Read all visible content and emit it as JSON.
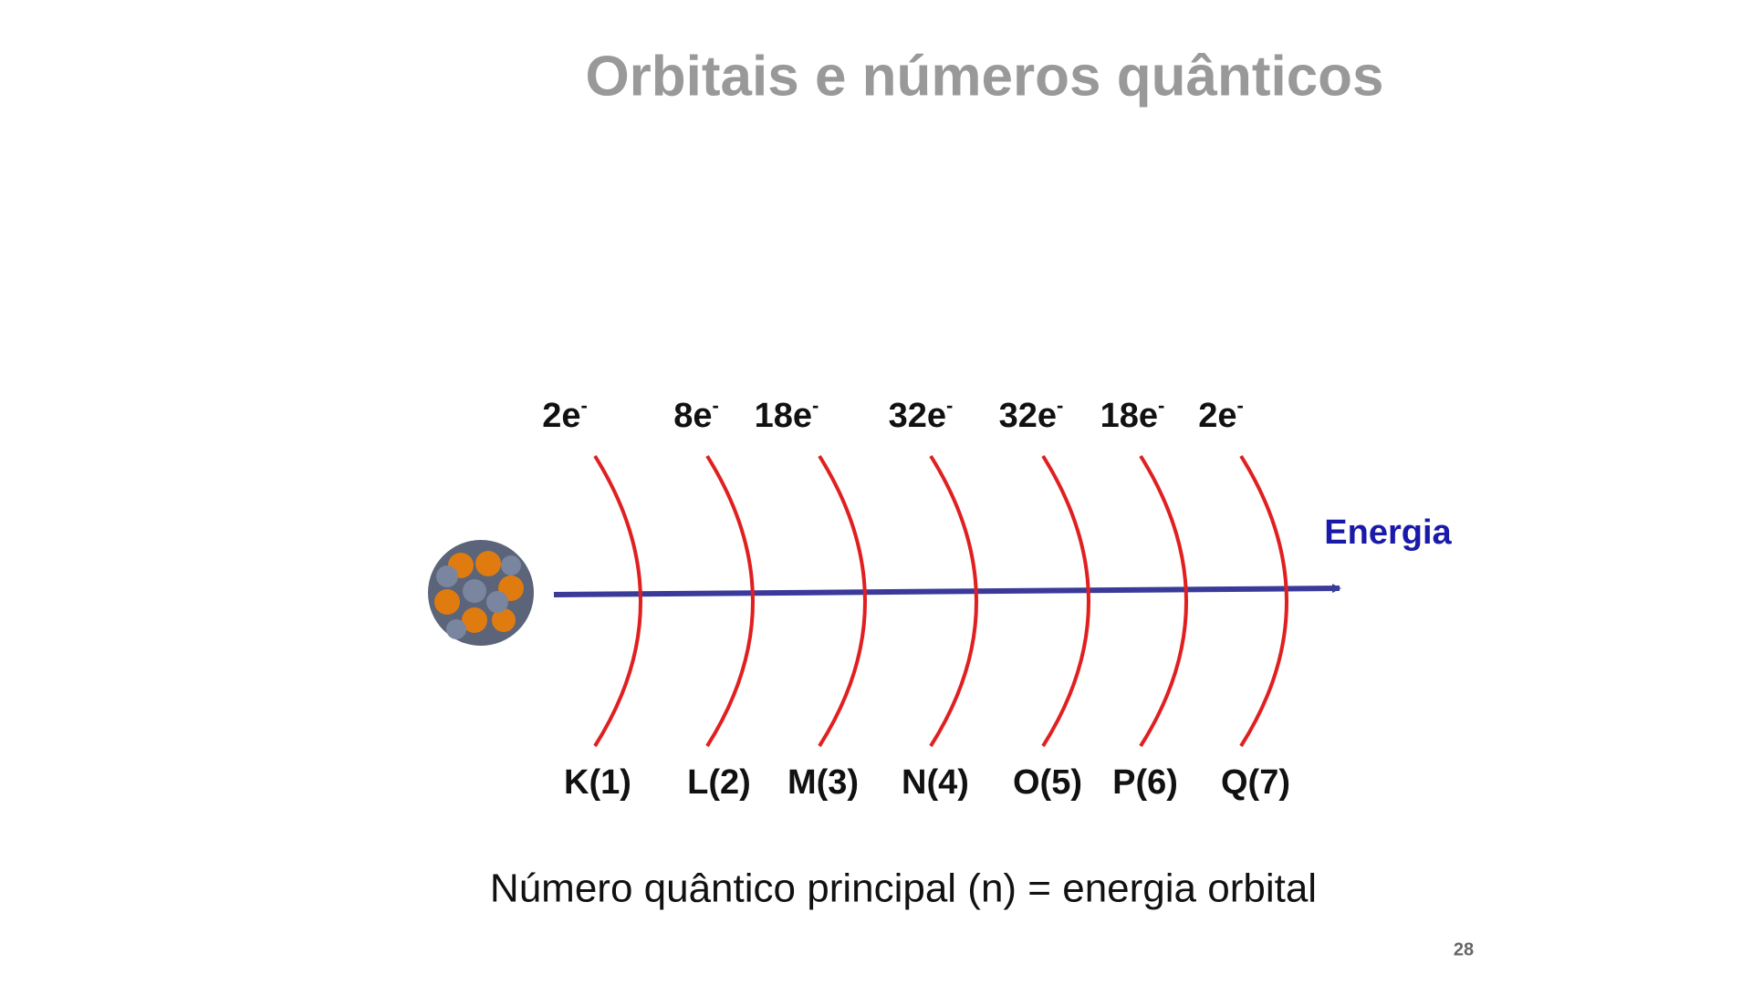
{
  "header": {
    "title": "Orbitais e números quânticos"
  },
  "shells": [
    {
      "electrons": "2e",
      "charge": "-",
      "label": "K(1)"
    },
    {
      "electrons": "8e",
      "charge": "-",
      "label": "L(2)"
    },
    {
      "electrons": "18e",
      "charge": "-",
      "label": "M(3)"
    },
    {
      "electrons": "32e",
      "charge": "-",
      "label": "N(4)"
    },
    {
      "electrons": "32e",
      "charge": "-",
      "label": "O(5)"
    },
    {
      "electrons": "18e",
      "charge": "-",
      "label": "P(6)"
    },
    {
      "electrons": "2e",
      "charge": "-",
      "label": "Q(7)"
    }
  ],
  "axis_label": "Energia",
  "caption": "Número quântico principal (n) = energia orbital",
  "page_number": "28"
}
